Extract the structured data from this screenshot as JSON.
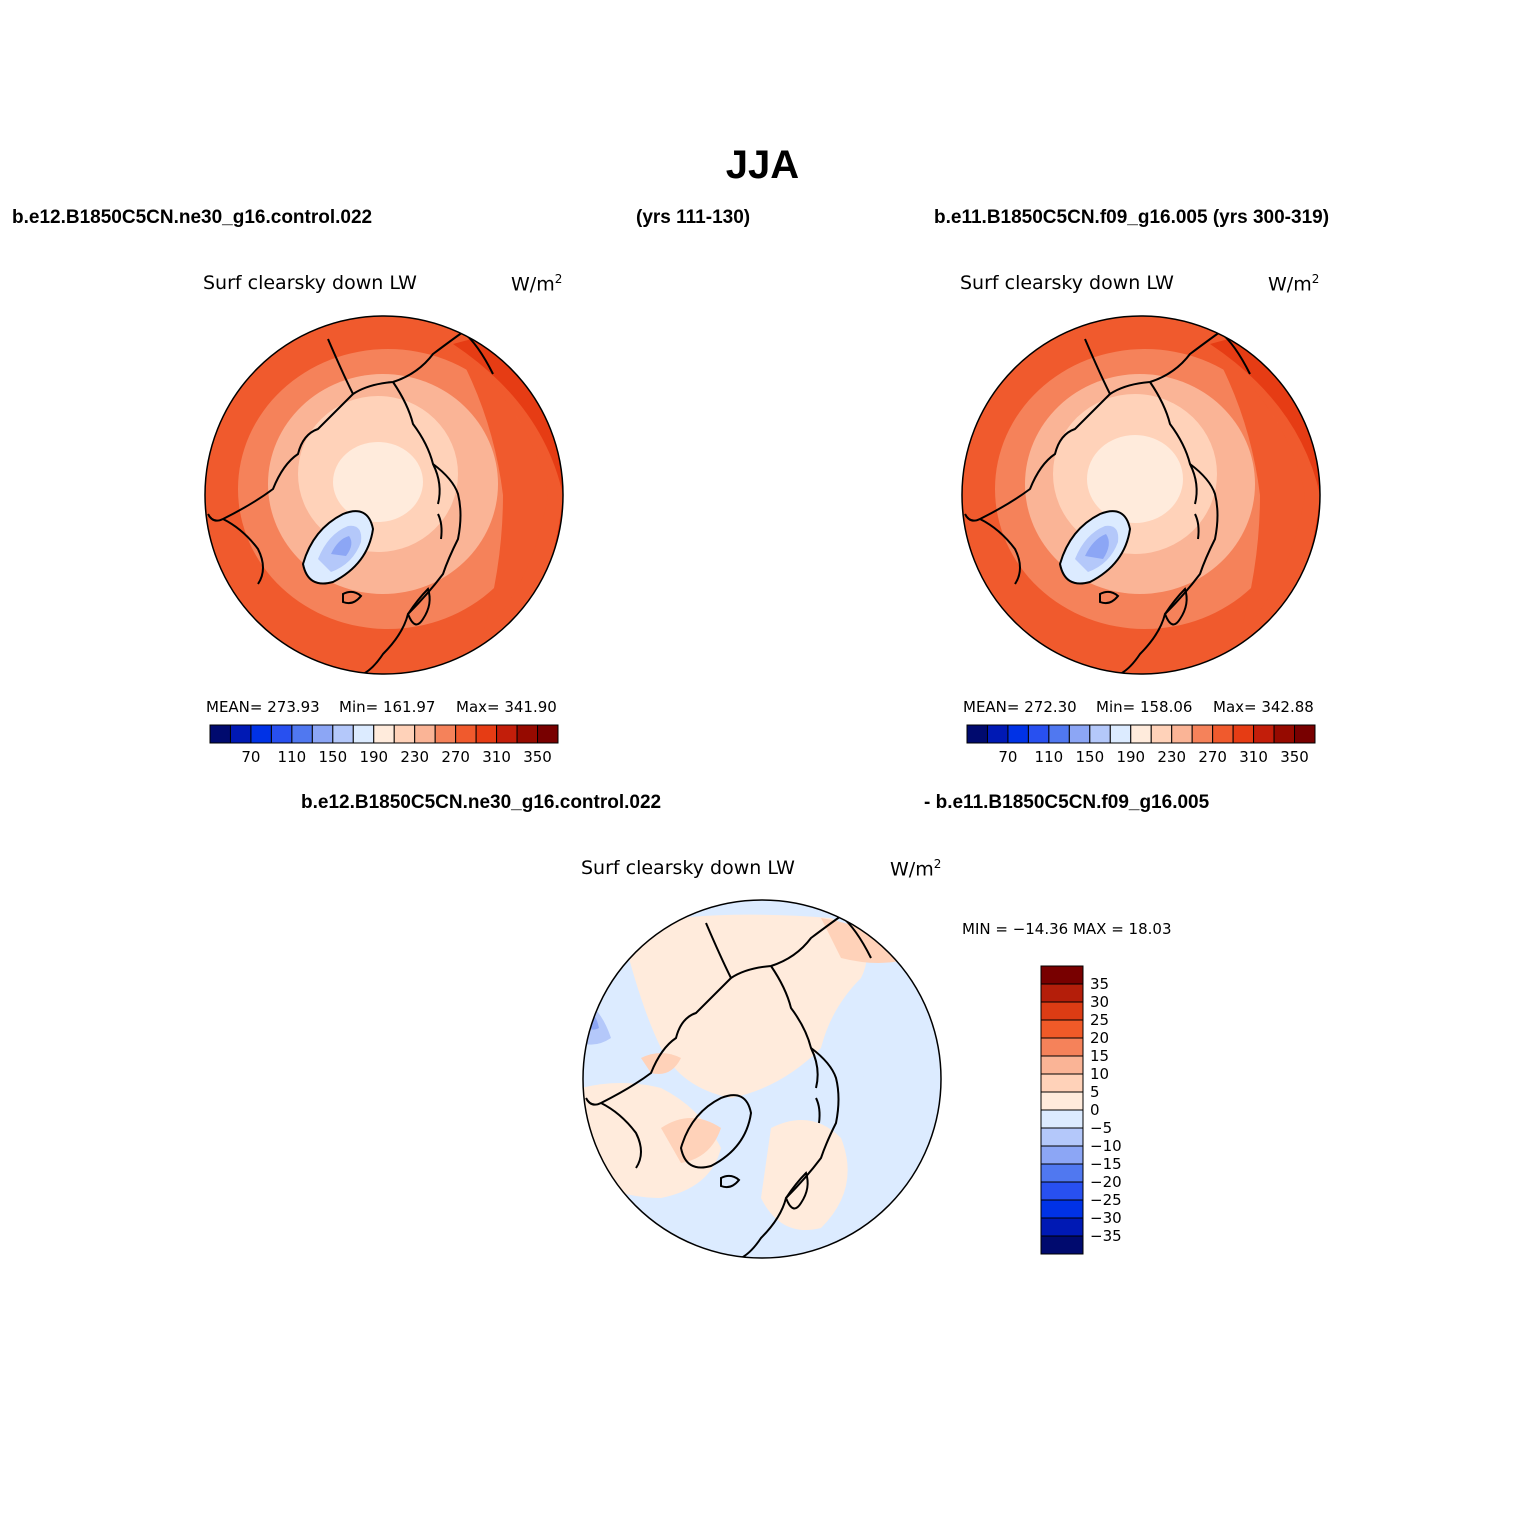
{
  "title": "JJA",
  "header": {
    "left": "b.e12.B1850C5CN.ne30_g16.control.022",
    "center": "(yrs 111-130)",
    "right": "b.e11.B1850C5CN.f09_g16.005 (yrs 300-319)"
  },
  "diff_header": {
    "left": "b.e12.B1850C5CN.ne30_g16.control.022",
    "right": "- b.e11.B1850C5CN.f09_g16.005"
  },
  "panels": {
    "left": {
      "variable": "Surf clearsky down LW",
      "units": "W/m",
      "units_exp": "2",
      "mean": "MEAN= 273.93",
      "min": "Min= 161.97",
      "max": "Max= 341.90"
    },
    "right": {
      "variable": "Surf clearsky down LW",
      "units": "W/m",
      "units_exp": "2",
      "mean": "MEAN= 272.30",
      "min": "Min= 158.06",
      "max": "Max= 342.88"
    },
    "diff": {
      "variable": "Surf clearsky down LW",
      "units": "W/m",
      "units_exp": "2",
      "minmax": "MIN = −14.36 MAX =   18.03"
    }
  },
  "colorbar_main": {
    "colors": [
      "#000a6e",
      "#0019b4",
      "#0032e6",
      "#2850f0",
      "#5078f0",
      "#8ca6f5",
      "#b4c8fa",
      "#dcebff",
      "#ffebdc",
      "#ffd2b9",
      "#fab496",
      "#f5825a",
      "#f05a2d",
      "#e63c14",
      "#c31e0a",
      "#960a00",
      "#780000"
    ],
    "labels": [
      "70",
      "110",
      "150",
      "190",
      "230",
      "270",
      "310",
      "350"
    ]
  },
  "colorbar_diff": {
    "colors": [
      "#780000",
      "#b41e0a",
      "#dc3c14",
      "#f05a28",
      "#f5825a",
      "#fab496",
      "#ffd2b9",
      "#ffebdc",
      "#dcebff",
      "#b4c8fa",
      "#8ca6f5",
      "#5078f0",
      "#2850f0",
      "#0032e6",
      "#0019b4",
      "#000a6e"
    ],
    "labels": [
      "35",
      "30",
      "25",
      "20",
      "15",
      "10",
      "5",
      "0",
      "−5",
      "−10",
      "−15",
      "−20",
      "−25",
      "−30",
      "−35"
    ]
  }
}
